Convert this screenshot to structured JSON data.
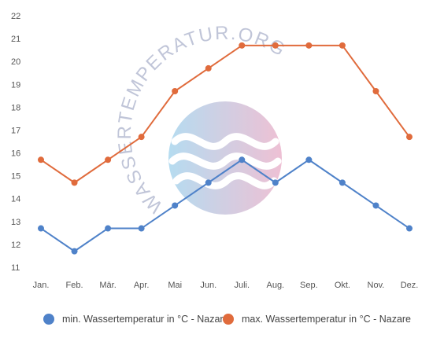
{
  "chart_data": {
    "type": "line",
    "categories": [
      "Jan.",
      "Feb.",
      "Mär.",
      "Apr.",
      "Mai",
      "Jun.",
      "Juli.",
      "Aug.",
      "Sep.",
      "Okt.",
      "Nov.",
      "Dez."
    ],
    "series": [
      {
        "name": "min. Wassertemperatur in °C - Nazare",
        "color": "#4f82c9",
        "values": [
          12.7,
          11.7,
          12.7,
          12.7,
          13.7,
          14.7,
          15.7,
          14.7,
          15.7,
          14.7,
          13.7,
          12.7
        ]
      },
      {
        "name": "max. Wassertemperatur in °C - Nazare",
        "color": "#e06b3c",
        "values": [
          15.7,
          14.7,
          15.7,
          16.7,
          18.7,
          19.7,
          20.7,
          20.7,
          20.7,
          20.7,
          18.7,
          16.7
        ]
      }
    ],
    "yticks": [
      11,
      12,
      13,
      14,
      15,
      16,
      17,
      18,
      19,
      20,
      21,
      22
    ],
    "ylim": [
      11,
      22
    ],
    "grid": false,
    "legend_position": "bottom"
  },
  "watermark": {
    "text": "WASSERTEMPERATUR.ORG"
  }
}
